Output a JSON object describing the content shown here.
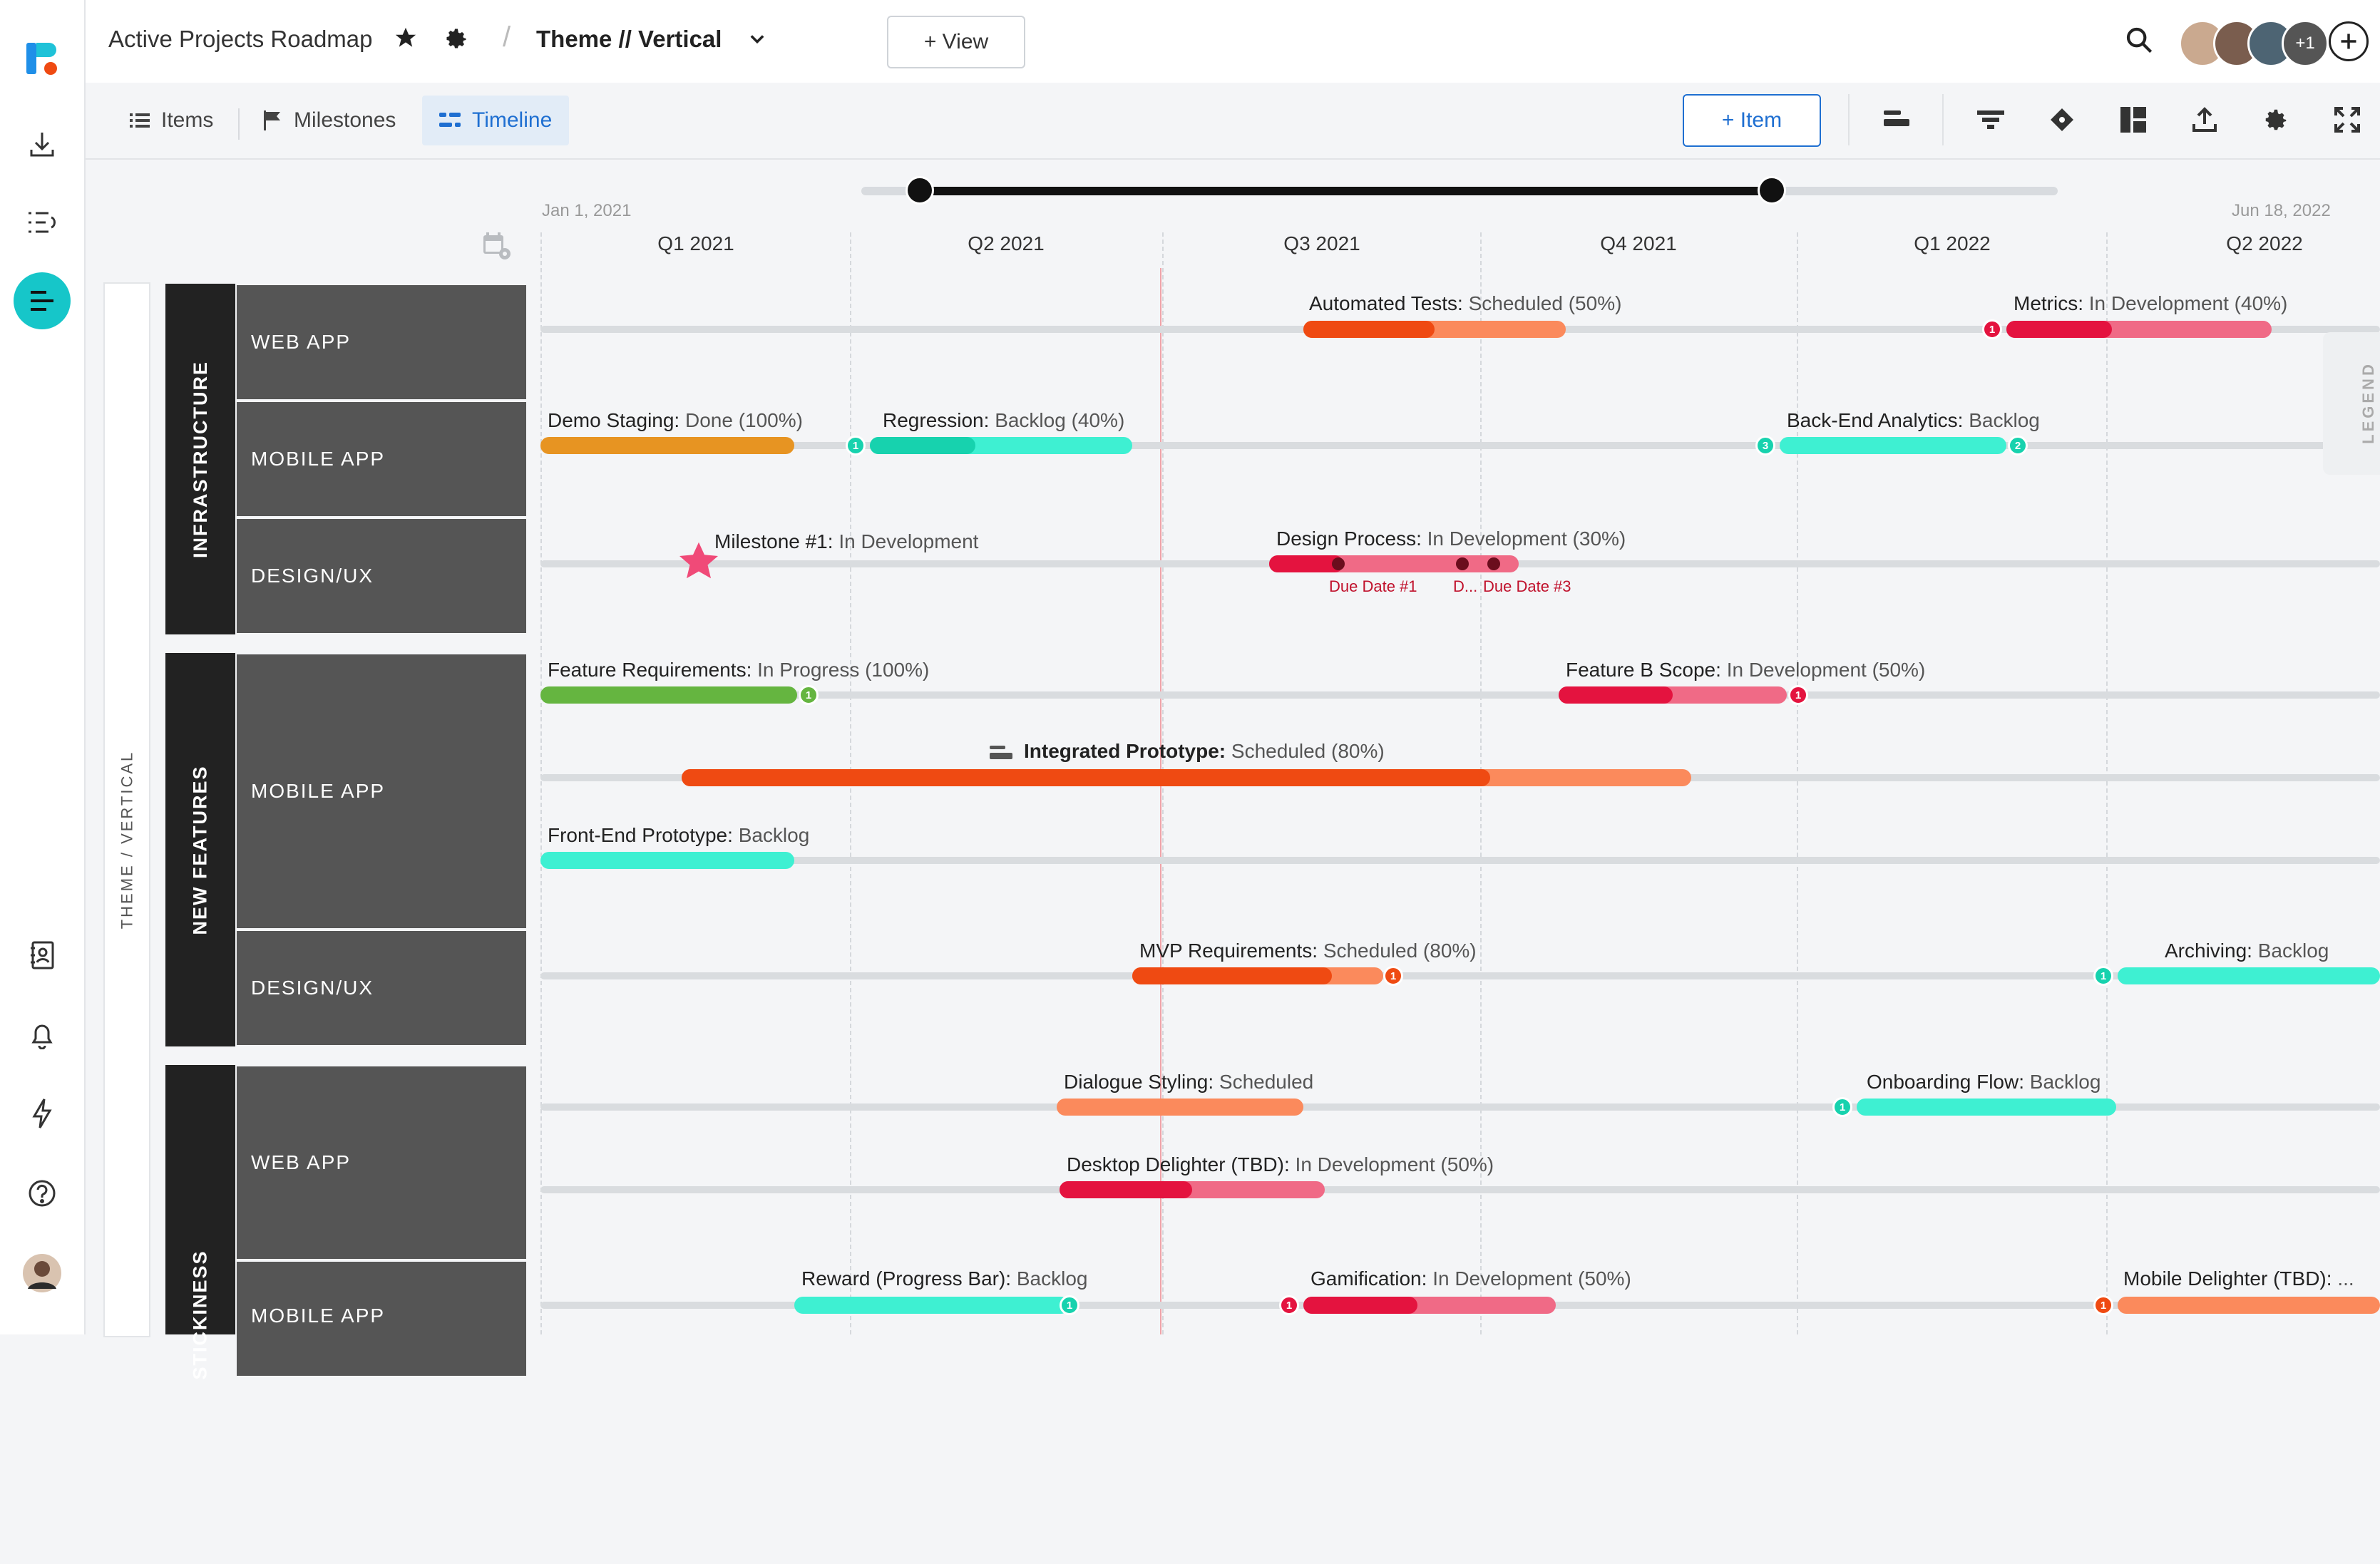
{
  "app": {
    "title": "Active Projects Roadmap",
    "view_name": "Theme // Vertical",
    "add_view_label": "+ View",
    "extra_users": "+1"
  },
  "tabs": [
    {
      "label": "Items"
    },
    {
      "label": "Milestones"
    },
    {
      "label": "Timeline"
    }
  ],
  "toolbar": {
    "add_item_label": "+ Item"
  },
  "timeline": {
    "start_date": "Jan 1, 2021",
    "end_date": "Jun 18, 2022",
    "quarters": [
      "Q1 2021",
      "Q2 2021",
      "Q3 2021",
      "Q4 2021",
      "Q1 2022",
      "Q2 2022"
    ],
    "panel_label": "THEME / VERTICAL",
    "legend_label": "LEGEND"
  },
  "groups": [
    {
      "label": "INFRASTRUCTURE",
      "rows": [
        "WEB APP",
        "MOBILE APP",
        "DESIGN/UX"
      ]
    },
    {
      "label": "NEW FEATURES",
      "rows": [
        "MOBILE APP",
        "DESIGN/UX"
      ]
    },
    {
      "label": "STICKINESS",
      "rows": [
        "WEB APP",
        "MOBILE APP"
      ]
    }
  ],
  "items": [
    {
      "name": "Automated Tests:",
      "status": "Scheduled (50%)"
    },
    {
      "name": "Metrics:",
      "status": "In Development (40%)",
      "badge": "1"
    },
    {
      "name": "Demo Staging:",
      "status": "Done (100%)"
    },
    {
      "name": "Regression:",
      "status": "Backlog (40%)",
      "badge": "1"
    },
    {
      "name": "Back-End Analytics:",
      "status": "Backlog",
      "badge": "3",
      "badge2": "2"
    },
    {
      "name": "Milestone #1:",
      "status": "In Development"
    },
    {
      "name": "Design Process:",
      "status": "In Development (30%)",
      "due1": "Due Date #1",
      "due2": "D...",
      "due3": "Due Date #3"
    },
    {
      "name": "Feature Requirements:",
      "status": "In Progress (100%)",
      "badge": "1"
    },
    {
      "name": "Feature B Scope:",
      "status": "In Development (50%)",
      "badge": "1"
    },
    {
      "name": "Integrated Prototype:",
      "status": "Scheduled (80%)"
    },
    {
      "name": "Front-End Prototype:",
      "status": "Backlog"
    },
    {
      "name": "MVP Requirements:",
      "status": "Scheduled (80%)",
      "badge": "1"
    },
    {
      "name": "Archiving:",
      "status": "Backlog",
      "badge": "1"
    },
    {
      "name": "Dialogue Styling:",
      "status": "Scheduled"
    },
    {
      "name": "Onboarding Flow:",
      "status": "Backlog",
      "badge": "1"
    },
    {
      "name": "Desktop Delighter (TBD):",
      "status": "In Development (50%)"
    },
    {
      "name": "Reward (Progress Bar):",
      "status": "Backlog",
      "badge": "1"
    },
    {
      "name": "Gamification:",
      "status": "In Development (50%)",
      "badge": "1"
    },
    {
      "name": "Mobile Delighter (TBD):",
      "status": "...",
      "badge": "1"
    }
  ],
  "colors": {
    "teal": "#16c6c9",
    "accent_blue": "#1f6fd1",
    "orange": "#ef4a12",
    "orange_light": "#fb8a5c",
    "red": "#e4133f",
    "pink": "#f06a86",
    "mint": "#3ef0d2",
    "mint_dark": "#17d2ae",
    "amber": "#e79422",
    "green": "#65b540"
  }
}
